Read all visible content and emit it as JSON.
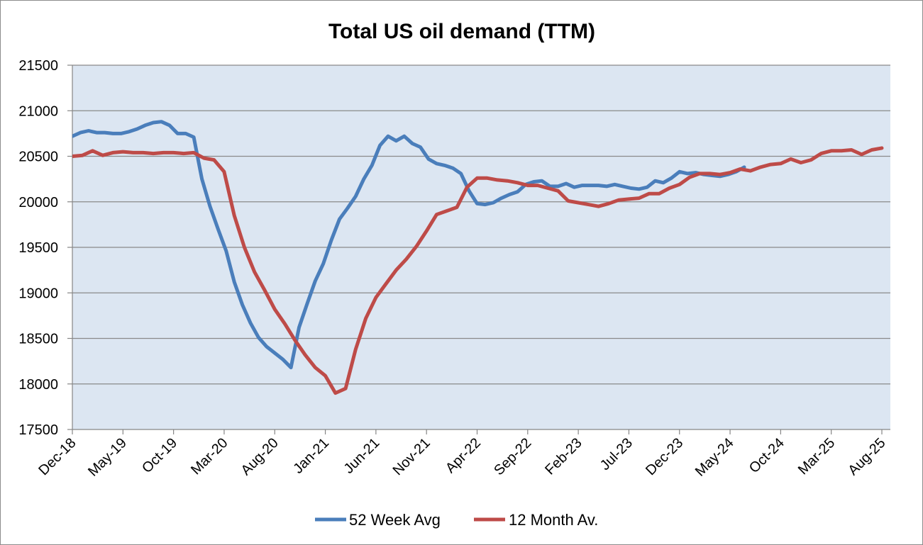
{
  "chart_data": {
    "type": "line",
    "title": "Total US oil demand (TTM)",
    "xlabel": "",
    "ylabel": "",
    "ylim": [
      17500,
      21500
    ],
    "yticks": [
      17500,
      18000,
      18500,
      19000,
      19500,
      20000,
      20500,
      21000,
      21500
    ],
    "x_tick_labels": [
      "Dec-18",
      "May-19",
      "Oct-19",
      "Mar-20",
      "Aug-20",
      "Jan-21",
      "Jun-21",
      "Nov-21",
      "Apr-22",
      "Sep-22",
      "Feb-23",
      "Jul-23",
      "Dec-23",
      "May-24",
      "Oct-24",
      "Mar-25",
      "Aug-25"
    ],
    "x_start": "Dec-18",
    "x_months": 80,
    "grid": true,
    "legend_position": "bottom",
    "series": [
      {
        "name": "52 Week Avg",
        "color": "#4a7ebb",
        "points": [
          [
            0,
            20720
          ],
          [
            0.8,
            20760
          ],
          [
            1.6,
            20780
          ],
          [
            2.4,
            20760
          ],
          [
            3.2,
            20760
          ],
          [
            4,
            20750
          ],
          [
            4.8,
            20750
          ],
          [
            5.6,
            20770
          ],
          [
            6.4,
            20800
          ],
          [
            7.2,
            20840
          ],
          [
            8,
            20870
          ],
          [
            8.8,
            20880
          ],
          [
            9.6,
            20840
          ],
          [
            10.4,
            20750
          ],
          [
            11.2,
            20750
          ],
          [
            12,
            20710
          ],
          [
            12.8,
            20250
          ],
          [
            13.6,
            19950
          ],
          [
            14.4,
            19700
          ],
          [
            15.2,
            19460
          ],
          [
            16,
            19120
          ],
          [
            16.8,
            18870
          ],
          [
            17.6,
            18670
          ],
          [
            18.4,
            18510
          ],
          [
            19.2,
            18410
          ],
          [
            20,
            18340
          ],
          [
            20.8,
            18270
          ],
          [
            21.6,
            18180
          ],
          [
            22.4,
            18620
          ],
          [
            23.2,
            18880
          ],
          [
            24,
            19130
          ],
          [
            24.8,
            19320
          ],
          [
            25.6,
            19580
          ],
          [
            26.4,
            19810
          ],
          [
            27.2,
            19930
          ],
          [
            28,
            20060
          ],
          [
            28.8,
            20250
          ],
          [
            29.6,
            20400
          ],
          [
            30.4,
            20620
          ],
          [
            31.2,
            20720
          ],
          [
            32,
            20670
          ],
          [
            32.8,
            20720
          ],
          [
            33.6,
            20640
          ],
          [
            34.4,
            20600
          ],
          [
            35.2,
            20470
          ],
          [
            36,
            20420
          ],
          [
            36.8,
            20400
          ],
          [
            37.6,
            20370
          ],
          [
            38.4,
            20310
          ],
          [
            39.2,
            20120
          ],
          [
            40,
            19980
          ],
          [
            40.8,
            19970
          ],
          [
            41.6,
            19990
          ],
          [
            42.4,
            20040
          ],
          [
            43.2,
            20080
          ],
          [
            44,
            20110
          ],
          [
            44.8,
            20190
          ],
          [
            45.6,
            20220
          ],
          [
            46.4,
            20230
          ],
          [
            47.2,
            20170
          ],
          [
            48,
            20170
          ],
          [
            48.8,
            20200
          ],
          [
            49.6,
            20160
          ],
          [
            50.4,
            20180
          ],
          [
            51.2,
            20180
          ],
          [
            52,
            20180
          ],
          [
            52.8,
            20170
          ],
          [
            53.6,
            20190
          ],
          [
            54.4,
            20170
          ],
          [
            55.2,
            20150
          ],
          [
            56,
            20140
          ],
          [
            56.8,
            20160
          ],
          [
            57.6,
            20230
          ],
          [
            58.4,
            20210
          ],
          [
            59.2,
            20260
          ],
          [
            60,
            20330
          ],
          [
            60.8,
            20310
          ],
          [
            61.6,
            20320
          ],
          [
            62.4,
            20300
          ],
          [
            63.2,
            20290
          ],
          [
            64,
            20280
          ],
          [
            64.8,
            20300
          ],
          [
            65.6,
            20330
          ],
          [
            66.4,
            20380
          ]
        ]
      },
      {
        "name": "12 Month Av.",
        "color": "#be4b48",
        "points": [
          [
            0,
            20500
          ],
          [
            1,
            20510
          ],
          [
            2,
            20560
          ],
          [
            3,
            20510
          ],
          [
            4,
            20540
          ],
          [
            5,
            20550
          ],
          [
            6,
            20540
          ],
          [
            7,
            20540
          ],
          [
            8,
            20530
          ],
          [
            9,
            20540
          ],
          [
            10,
            20540
          ],
          [
            11,
            20530
          ],
          [
            12,
            20540
          ],
          [
            13,
            20480
          ],
          [
            14,
            20460
          ],
          [
            15,
            20330
          ],
          [
            16,
            19850
          ],
          [
            17,
            19500
          ],
          [
            18,
            19230
          ],
          [
            19,
            19030
          ],
          [
            20,
            18820
          ],
          [
            21,
            18660
          ],
          [
            22,
            18480
          ],
          [
            23,
            18320
          ],
          [
            24,
            18180
          ],
          [
            25,
            18090
          ],
          [
            26,
            17900
          ],
          [
            27,
            17950
          ],
          [
            28,
            18380
          ],
          [
            29,
            18720
          ],
          [
            30,
            18950
          ],
          [
            31,
            19100
          ],
          [
            32,
            19250
          ],
          [
            33,
            19370
          ],
          [
            34,
            19510
          ],
          [
            35,
            19680
          ],
          [
            36,
            19860
          ],
          [
            37,
            19900
          ],
          [
            38,
            19940
          ],
          [
            39,
            20160
          ],
          [
            40,
            20260
          ],
          [
            41,
            20260
          ],
          [
            42,
            20240
          ],
          [
            43,
            20230
          ],
          [
            44,
            20210
          ],
          [
            45,
            20180
          ],
          [
            46,
            20180
          ],
          [
            47,
            20150
          ],
          [
            48,
            20120
          ],
          [
            49,
            20010
          ],
          [
            50,
            19990
          ],
          [
            51,
            19970
          ],
          [
            52,
            19950
          ],
          [
            53,
            19980
          ],
          [
            54,
            20020
          ],
          [
            55,
            20030
          ],
          [
            56,
            20040
          ],
          [
            57,
            20090
          ],
          [
            58,
            20090
          ],
          [
            59,
            20150
          ],
          [
            60,
            20190
          ],
          [
            61,
            20270
          ],
          [
            62,
            20310
          ],
          [
            63,
            20310
          ],
          [
            64,
            20300
          ],
          [
            65,
            20320
          ],
          [
            66,
            20360
          ],
          [
            67,
            20340
          ],
          [
            68,
            20380
          ],
          [
            69,
            20410
          ],
          [
            70,
            20420
          ],
          [
            71,
            20470
          ],
          [
            72,
            20430
          ],
          [
            73,
            20460
          ],
          [
            74,
            20530
          ],
          [
            75,
            20560
          ],
          [
            76,
            20560
          ],
          [
            77,
            20570
          ],
          [
            78,
            20520
          ],
          [
            79,
            20570
          ],
          [
            80,
            20590
          ]
        ]
      }
    ]
  }
}
